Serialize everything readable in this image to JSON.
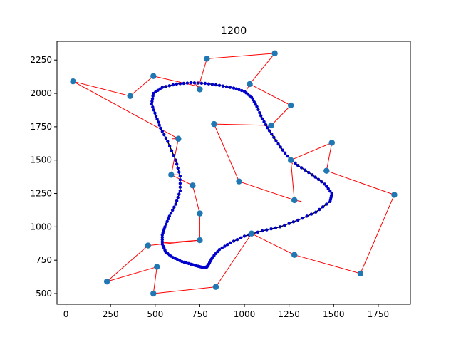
{
  "chart_data": {
    "type": "scatter",
    "title": "1200",
    "xlabel": "",
    "ylabel": "",
    "xlim": [
      -50,
      1930
    ],
    "ylim": [
      420,
      2390
    ],
    "xticks": [
      0,
      250,
      500,
      750,
      1000,
      1250,
      1500,
      1750
    ],
    "yticks": [
      500,
      750,
      1000,
      1250,
      1500,
      1750,
      2000,
      2250
    ],
    "xtick_labels": [
      "0",
      "250",
      "500",
      "750",
      "1000",
      "1250",
      "1500",
      "1750"
    ],
    "ytick_labels": [
      "500",
      "750",
      "1000",
      "1250",
      "1500",
      "1750",
      "2000",
      "2250"
    ],
    "grid": false,
    "colors": {
      "cities": "#1f77b4",
      "links": "#ff0000",
      "curve": "#000000",
      "curve_points": "#0000cd"
    },
    "cities": [
      {
        "x": 40,
        "y": 2090
      },
      {
        "x": 360,
        "y": 1980
      },
      {
        "x": 490,
        "y": 2130
      },
      {
        "x": 790,
        "y": 2260
      },
      {
        "x": 1170,
        "y": 2300
      },
      {
        "x": 1030,
        "y": 2070
      },
      {
        "x": 750,
        "y": 2030
      },
      {
        "x": 1260,
        "y": 1910
      },
      {
        "x": 1150,
        "y": 1760
      },
      {
        "x": 830,
        "y": 1770
      },
      {
        "x": 630,
        "y": 1660
      },
      {
        "x": 1490,
        "y": 1630
      },
      {
        "x": 1260,
        "y": 1500
      },
      {
        "x": 1460,
        "y": 1420
      },
      {
        "x": 590,
        "y": 1390
      },
      {
        "x": 970,
        "y": 1340
      },
      {
        "x": 710,
        "y": 1310
      },
      {
        "x": 1280,
        "y": 1200
      },
      {
        "x": 1840,
        "y": 1240
      },
      {
        "x": 750,
        "y": 1100
      },
      {
        "x": 1040,
        "y": 950
      },
      {
        "x": 750,
        "y": 900
      },
      {
        "x": 460,
        "y": 860
      },
      {
        "x": 1280,
        "y": 790
      },
      {
        "x": 510,
        "y": 700
      },
      {
        "x": 1650,
        "y": 650
      },
      {
        "x": 230,
        "y": 590
      },
      {
        "x": 840,
        "y": 550
      },
      {
        "x": 490,
        "y": 500
      }
    ],
    "links": [
      {
        "from": {
          "x": 40,
          "y": 2090
        },
        "to": {
          "x": 360,
          "y": 1980
        }
      },
      {
        "from": {
          "x": 40,
          "y": 2090
        },
        "to": {
          "x": 630,
          "y": 1660
        }
      },
      {
        "from": {
          "x": 360,
          "y": 1980
        },
        "to": {
          "x": 490,
          "y": 2130
        }
      },
      {
        "from": {
          "x": 490,
          "y": 2130
        },
        "to": {
          "x": 750,
          "y": 2050
        }
      },
      {
        "from": {
          "x": 790,
          "y": 2260
        },
        "to": {
          "x": 1170,
          "y": 2300
        }
      },
      {
        "from": {
          "x": 790,
          "y": 2260
        },
        "to": {
          "x": 750,
          "y": 2080
        }
      },
      {
        "from": {
          "x": 1170,
          "y": 2300
        },
        "to": {
          "x": 1030,
          "y": 2070
        }
      },
      {
        "from": {
          "x": 1030,
          "y": 2070
        },
        "to": {
          "x": 1010,
          "y": 2020
        }
      },
      {
        "from": {
          "x": 1030,
          "y": 2070
        },
        "to": {
          "x": 1260,
          "y": 1910
        }
      },
      {
        "from": {
          "x": 750,
          "y": 2030
        },
        "to": {
          "x": 720,
          "y": 2080
        }
      },
      {
        "from": {
          "x": 1260,
          "y": 1910
        },
        "to": {
          "x": 1150,
          "y": 1760
        }
      },
      {
        "from": {
          "x": 1150,
          "y": 1760
        },
        "to": {
          "x": 830,
          "y": 1770
        }
      },
      {
        "from": {
          "x": 1150,
          "y": 1760
        },
        "to": {
          "x": 1110,
          "y": 1760
        }
      },
      {
        "from": {
          "x": 830,
          "y": 1770
        },
        "to": {
          "x": 970,
          "y": 1340
        }
      },
      {
        "from": {
          "x": 630,
          "y": 1660
        },
        "to": {
          "x": 590,
          "y": 1390
        }
      },
      {
        "from": {
          "x": 630,
          "y": 1660
        },
        "to": {
          "x": 595,
          "y": 1660
        }
      },
      {
        "from": {
          "x": 1490,
          "y": 1630
        },
        "to": {
          "x": 1260,
          "y": 1500
        }
      },
      {
        "from": {
          "x": 1490,
          "y": 1630
        },
        "to": {
          "x": 1460,
          "y": 1420
        }
      },
      {
        "from": {
          "x": 1260,
          "y": 1500
        },
        "to": {
          "x": 1280,
          "y": 1200
        }
      },
      {
        "from": {
          "x": 1260,
          "y": 1500
        },
        "to": {
          "x": 1270,
          "y": 1470
        }
      },
      {
        "from": {
          "x": 1460,
          "y": 1420
        },
        "to": {
          "x": 1840,
          "y": 1240
        }
      },
      {
        "from": {
          "x": 590,
          "y": 1390
        },
        "to": {
          "x": 710,
          "y": 1310
        }
      },
      {
        "from": {
          "x": 590,
          "y": 1390
        },
        "to": {
          "x": 640,
          "y": 1390
        }
      },
      {
        "from": {
          "x": 970,
          "y": 1340
        },
        "to": {
          "x": 1280,
          "y": 1200
        }
      },
      {
        "from": {
          "x": 710,
          "y": 1310
        },
        "to": {
          "x": 750,
          "y": 1100
        }
      },
      {
        "from": {
          "x": 1280,
          "y": 1200
        },
        "to": {
          "x": 1320,
          "y": 1190
        }
      },
      {
        "from": {
          "x": 1840,
          "y": 1240
        },
        "to": {
          "x": 1650,
          "y": 650
        }
      },
      {
        "from": {
          "x": 750,
          "y": 1100
        },
        "to": {
          "x": 750,
          "y": 900
        }
      },
      {
        "from": {
          "x": 1040,
          "y": 950
        },
        "to": {
          "x": 1280,
          "y": 790
        }
      },
      {
        "from": {
          "x": 1040,
          "y": 950
        },
        "to": {
          "x": 840,
          "y": 550
        }
      },
      {
        "from": {
          "x": 1040,
          "y": 950
        },
        "to": {
          "x": 1050,
          "y": 960
        }
      },
      {
        "from": {
          "x": 750,
          "y": 900
        },
        "to": {
          "x": 460,
          "y": 860
        }
      },
      {
        "from": {
          "x": 750,
          "y": 900
        },
        "to": {
          "x": 540,
          "y": 880
        }
      },
      {
        "from": {
          "x": 460,
          "y": 860
        },
        "to": {
          "x": 230,
          "y": 590
        }
      },
      {
        "from": {
          "x": 1280,
          "y": 790
        },
        "to": {
          "x": 1650,
          "y": 650
        }
      },
      {
        "from": {
          "x": 510,
          "y": 700
        },
        "to": {
          "x": 230,
          "y": 590
        }
      },
      {
        "from": {
          "x": 510,
          "y": 700
        },
        "to": {
          "x": 490,
          "y": 500
        }
      },
      {
        "from": {
          "x": 840,
          "y": 550
        },
        "to": {
          "x": 490,
          "y": 500
        }
      }
    ],
    "curve": [
      {
        "x": 790,
        "y": 700
      },
      {
        "x": 770,
        "y": 695
      },
      {
        "x": 740,
        "y": 705
      },
      {
        "x": 700,
        "y": 720
      },
      {
        "x": 650,
        "y": 740
      },
      {
        "x": 600,
        "y": 770
      },
      {
        "x": 560,
        "y": 810
      },
      {
        "x": 540,
        "y": 870
      },
      {
        "x": 540,
        "y": 940
      },
      {
        "x": 555,
        "y": 1000
      },
      {
        "x": 580,
        "y": 1080
      },
      {
        "x": 615,
        "y": 1170
      },
      {
        "x": 640,
        "y": 1270
      },
      {
        "x": 640,
        "y": 1380
      },
      {
        "x": 615,
        "y": 1500
      },
      {
        "x": 570,
        "y": 1640
      },
      {
        "x": 530,
        "y": 1740
      },
      {
        "x": 505,
        "y": 1830
      },
      {
        "x": 480,
        "y": 1920
      },
      {
        "x": 490,
        "y": 2000
      },
      {
        "x": 540,
        "y": 2045
      },
      {
        "x": 620,
        "y": 2070
      },
      {
        "x": 700,
        "y": 2080
      },
      {
        "x": 780,
        "y": 2075
      },
      {
        "x": 860,
        "y": 2060
      },
      {
        "x": 940,
        "y": 2040
      },
      {
        "x": 1000,
        "y": 2015
      },
      {
        "x": 1040,
        "y": 1970
      },
      {
        "x": 1070,
        "y": 1900
      },
      {
        "x": 1100,
        "y": 1810
      },
      {
        "x": 1140,
        "y": 1720
      },
      {
        "x": 1190,
        "y": 1620
      },
      {
        "x": 1240,
        "y": 1530
      },
      {
        "x": 1300,
        "y": 1460
      },
      {
        "x": 1380,
        "y": 1390
      },
      {
        "x": 1450,
        "y": 1320
      },
      {
        "x": 1490,
        "y": 1250
      },
      {
        "x": 1480,
        "y": 1190
      },
      {
        "x": 1400,
        "y": 1110
      },
      {
        "x": 1300,
        "y": 1050
      },
      {
        "x": 1200,
        "y": 1000
      },
      {
        "x": 1100,
        "y": 970
      },
      {
        "x": 1000,
        "y": 930
      },
      {
        "x": 920,
        "y": 880
      },
      {
        "x": 860,
        "y": 830
      },
      {
        "x": 820,
        "y": 770
      },
      {
        "x": 800,
        "y": 720
      },
      {
        "x": 790,
        "y": 700
      }
    ]
  }
}
